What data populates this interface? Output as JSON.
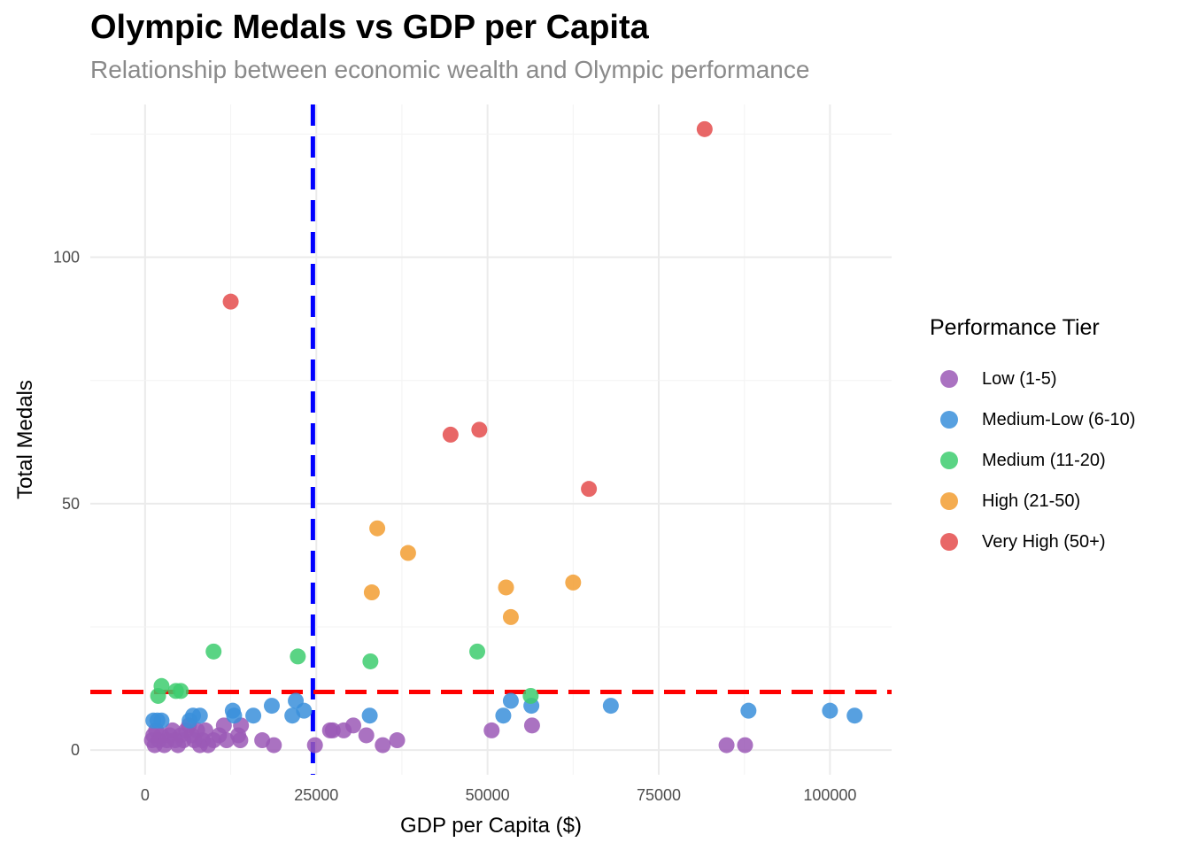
{
  "chart_data": {
    "type": "scatter",
    "title": "Olympic Medals vs GDP per Capita",
    "subtitle": "Relationship between economic wealth and Olympic performance",
    "xlabel": "GDP per Capita ($)",
    "ylabel": "Total Medals",
    "xlim": [
      -8000,
      109000
    ],
    "ylim": [
      -5,
      131
    ],
    "x_ticks": [
      0,
      25000,
      50000,
      75000,
      100000
    ],
    "x_tick_labels": [
      "0",
      "25000",
      "50000",
      "75000",
      "100000"
    ],
    "y_ticks": [
      0,
      50,
      100
    ],
    "y_tick_labels": [
      "0",
      "50",
      "100"
    ],
    "grid": true,
    "legend_position": "right",
    "legend_title": "Performance Tier",
    "reference_lines": [
      {
        "orientation": "vertical",
        "value": 24500,
        "color": "#0000ff",
        "style": "dashed"
      },
      {
        "orientation": "horizontal",
        "value": 11.8,
        "color": "#ff0000",
        "style": "dashed"
      }
    ],
    "series": [
      {
        "name": "Low (1-5)",
        "color": "#9b59b6",
        "points": [
          [
            1000,
            2
          ],
          [
            1200,
            3
          ],
          [
            1400,
            1
          ],
          [
            1600,
            4
          ],
          [
            2000,
            2
          ],
          [
            2400,
            3
          ],
          [
            2800,
            1
          ],
          [
            3200,
            2
          ],
          [
            3600,
            3
          ],
          [
            4000,
            4
          ],
          [
            4400,
            2
          ],
          [
            4800,
            1
          ],
          [
            5200,
            3
          ],
          [
            5600,
            2
          ],
          [
            6000,
            4
          ],
          [
            6400,
            5
          ],
          [
            6800,
            3
          ],
          [
            7200,
            2
          ],
          [
            7600,
            4
          ],
          [
            8000,
            1
          ],
          [
            8400,
            2
          ],
          [
            8800,
            4
          ],
          [
            9200,
            1
          ],
          [
            10000,
            2
          ],
          [
            10800,
            3
          ],
          [
            11500,
            5
          ],
          [
            11900,
            2
          ],
          [
            13600,
            3
          ],
          [
            13900,
            2
          ],
          [
            14000,
            5
          ],
          [
            17100,
            2
          ],
          [
            18800,
            1
          ],
          [
            24800,
            1
          ],
          [
            27000,
            4
          ],
          [
            27400,
            4
          ],
          [
            29000,
            4
          ],
          [
            30400,
            5
          ],
          [
            32300,
            3
          ],
          [
            34700,
            1
          ],
          [
            36800,
            2
          ],
          [
            50600,
            4
          ],
          [
            56500,
            5
          ],
          [
            84900,
            1
          ],
          [
            87600,
            1
          ]
        ]
      },
      {
        "name": "Medium-Low (6-10)",
        "color": "#3a8fdb",
        "points": [
          [
            1200,
            6
          ],
          [
            1800,
            6
          ],
          [
            2400,
            6
          ],
          [
            6500,
            6
          ],
          [
            7000,
            7
          ],
          [
            8000,
            7
          ],
          [
            12800,
            8
          ],
          [
            13000,
            7
          ],
          [
            15800,
            7
          ],
          [
            18500,
            9
          ],
          [
            21500,
            7
          ],
          [
            22000,
            10
          ],
          [
            23200,
            8
          ],
          [
            32800,
            7
          ],
          [
            52300,
            7
          ],
          [
            53400,
            10
          ],
          [
            56400,
            9
          ],
          [
            68000,
            9
          ],
          [
            88100,
            8
          ],
          [
            100000,
            8
          ],
          [
            103600,
            7
          ]
        ]
      },
      {
        "name": "Medium (11-20)",
        "color": "#3dcc6e",
        "points": [
          [
            1900,
            11
          ],
          [
            2400,
            13
          ],
          [
            4500,
            12
          ],
          [
            5200,
            12
          ],
          [
            10000,
            20
          ],
          [
            22300,
            19
          ],
          [
            32900,
            18
          ],
          [
            48500,
            20
          ],
          [
            56300,
            11
          ]
        ]
      },
      {
        "name": "High (21-50)",
        "color": "#f29e31",
        "points": [
          [
            33100,
            32
          ],
          [
            33900,
            45
          ],
          [
            38400,
            40
          ],
          [
            52700,
            33
          ],
          [
            53400,
            27
          ],
          [
            62500,
            34
          ]
        ]
      },
      {
        "name": "Very High (50+)",
        "color": "#e44c4c",
        "points": [
          [
            12500,
            91
          ],
          [
            44600,
            64
          ],
          [
            48800,
            65
          ],
          [
            64800,
            53
          ],
          [
            81700,
            126
          ]
        ]
      }
    ]
  }
}
